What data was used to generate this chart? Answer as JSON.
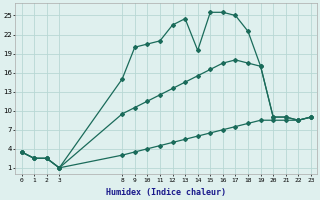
{
  "xlabel": "Humidex (Indice chaleur)",
  "bg_color": "#dff0ee",
  "grid_color": "#b8d8d4",
  "line_color": "#1a6b5a",
  "x_ticks": [
    0,
    1,
    2,
    3,
    8,
    9,
    10,
    11,
    12,
    13,
    14,
    15,
    16,
    17,
    18,
    19,
    20,
    21,
    22,
    23
  ],
  "y_ticks": [
    1,
    4,
    7,
    10,
    13,
    16,
    19,
    22,
    25
  ],
  "ylim": [
    0,
    27
  ],
  "xlim": [
    -0.5,
    23.5
  ],
  "series": [
    {
      "x": [
        0,
        1,
        2,
        3,
        8,
        9,
        10,
        11,
        12,
        13,
        14,
        15,
        16,
        17,
        18,
        19,
        20,
        21,
        22,
        23
      ],
      "y": [
        3.5,
        2.5,
        2.5,
        1.0,
        15.0,
        20.0,
        20.5,
        21.0,
        23.5,
        24.5,
        19.5,
        25.5,
        25.5,
        25.0,
        22.5,
        17.0,
        9.0,
        9.0,
        8.5,
        9.0
      ]
    },
    {
      "x": [
        0,
        1,
        2,
        3,
        8,
        9,
        10,
        11,
        12,
        13,
        14,
        15,
        16,
        17,
        18,
        19,
        20,
        21,
        22,
        23
      ],
      "y": [
        3.5,
        2.5,
        2.5,
        1.0,
        9.5,
        10.5,
        11.5,
        12.5,
        13.5,
        14.5,
        15.5,
        16.5,
        17.5,
        18.0,
        17.5,
        17.0,
        9.0,
        9.0,
        8.5,
        9.0
      ]
    },
    {
      "x": [
        0,
        1,
        2,
        3,
        8,
        9,
        10,
        11,
        12,
        13,
        14,
        15,
        16,
        17,
        18,
        19,
        20,
        21,
        22,
        23
      ],
      "y": [
        3.5,
        2.5,
        2.5,
        1.0,
        3.0,
        3.5,
        4.0,
        4.5,
        5.0,
        5.5,
        6.0,
        6.5,
        7.0,
        7.5,
        8.0,
        8.5,
        8.5,
        8.5,
        8.5,
        9.0
      ]
    }
  ]
}
